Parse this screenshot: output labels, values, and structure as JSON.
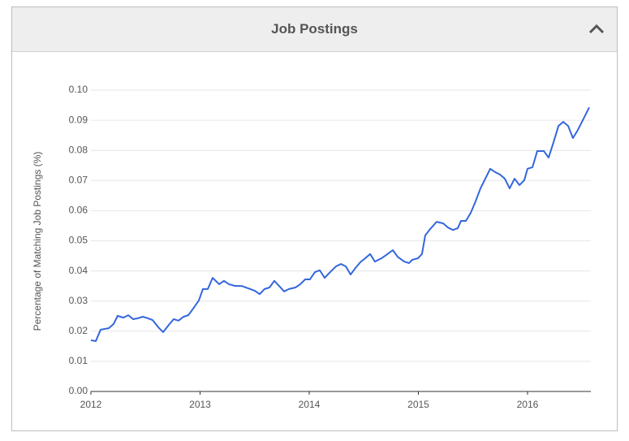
{
  "chart_data": {
    "type": "line",
    "title": "Job Postings",
    "ylabel": "Percentage of Matching Job Postings (%)",
    "color": "#3366dd",
    "grid": true,
    "xlim": [
      2012,
      2016.58
    ],
    "xticks": [
      2012,
      2013,
      2014,
      2015,
      2016
    ],
    "ylim": [
      0,
      0.1
    ],
    "yticks": [
      {
        "value": 0,
        "label": "0.00"
      },
      0.01,
      0.02,
      0.03,
      0.04,
      0.05,
      0.06,
      0.07,
      0.08,
      0.09,
      {
        "value": 0.1,
        "label": "0.10"
      }
    ],
    "x": [
      2012.0,
      2012.045,
      2012.089,
      2012.164,
      2012.208,
      2012.245,
      2012.297,
      2012.342,
      2012.387,
      2012.431,
      2012.476,
      2012.52,
      2012.565,
      2012.625,
      2012.662,
      2012.714,
      2012.758,
      2012.803,
      2012.848,
      2012.892,
      2012.937,
      2012.989,
      2013.026,
      2013.071,
      2013.115,
      2013.175,
      2013.219,
      2013.264,
      2013.323,
      2013.383,
      2013.442,
      2013.502,
      2013.546,
      2013.591,
      2013.636,
      2013.68,
      2013.725,
      2013.77,
      2013.814,
      2013.874,
      2013.918,
      2013.963,
      2014.007,
      2014.052,
      2014.097,
      2014.141,
      2014.186,
      2014.245,
      2014.29,
      2014.335,
      2014.379,
      2014.424,
      2014.468,
      2014.513,
      2014.558,
      2014.602,
      2014.662,
      2014.706,
      2014.766,
      2014.81,
      2014.87,
      2014.914,
      2014.944,
      2014.996,
      2015.033,
      2015.063,
      2015.108,
      2015.167,
      2015.227,
      2015.271,
      2015.316,
      2015.361,
      2015.39,
      2015.435,
      2015.48,
      2015.524,
      2015.569,
      2015.613,
      2015.658,
      2015.703,
      2015.747,
      2015.792,
      2015.836,
      2015.881,
      2015.926,
      2015.97,
      2016.0,
      2016.045,
      2016.089,
      2016.149,
      2016.193,
      2016.238,
      2016.283,
      2016.327,
      2016.372,
      2016.416,
      2016.461,
      2016.506,
      2016.565
    ],
    "values": [
      0.017,
      0.0167,
      0.0205,
      0.021,
      0.0224,
      0.0251,
      0.0245,
      0.0253,
      0.024,
      0.0243,
      0.0248,
      0.0243,
      0.0237,
      0.021,
      0.0197,
      0.0221,
      0.024,
      0.0235,
      0.0248,
      0.0253,
      0.0275,
      0.0302,
      0.034,
      0.034,
      0.0377,
      0.0356,
      0.0367,
      0.0356,
      0.035,
      0.035,
      0.0342,
      0.0334,
      0.0323,
      0.034,
      0.0345,
      0.0367,
      0.035,
      0.0332,
      0.034,
      0.0345,
      0.0356,
      0.0372,
      0.0372,
      0.0396,
      0.0402,
      0.0377,
      0.0394,
      0.0415,
      0.0423,
      0.0415,
      0.0388,
      0.041,
      0.0429,
      0.0442,
      0.0456,
      0.0431,
      0.0442,
      0.0453,
      0.0469,
      0.0447,
      0.0431,
      0.0426,
      0.0437,
      0.0442,
      0.0456,
      0.0518,
      0.0539,
      0.0563,
      0.0558,
      0.0544,
      0.0536,
      0.0542,
      0.0566,
      0.0566,
      0.0593,
      0.0631,
      0.0674,
      0.0706,
      0.0739,
      0.0728,
      0.072,
      0.0706,
      0.0674,
      0.0706,
      0.0685,
      0.0701,
      0.0739,
      0.0744,
      0.0798,
      0.0798,
      0.0776,
      0.0827,
      0.0881,
      0.0895,
      0.0881,
      0.0841,
      0.0868,
      0.09,
      0.0943
    ]
  }
}
